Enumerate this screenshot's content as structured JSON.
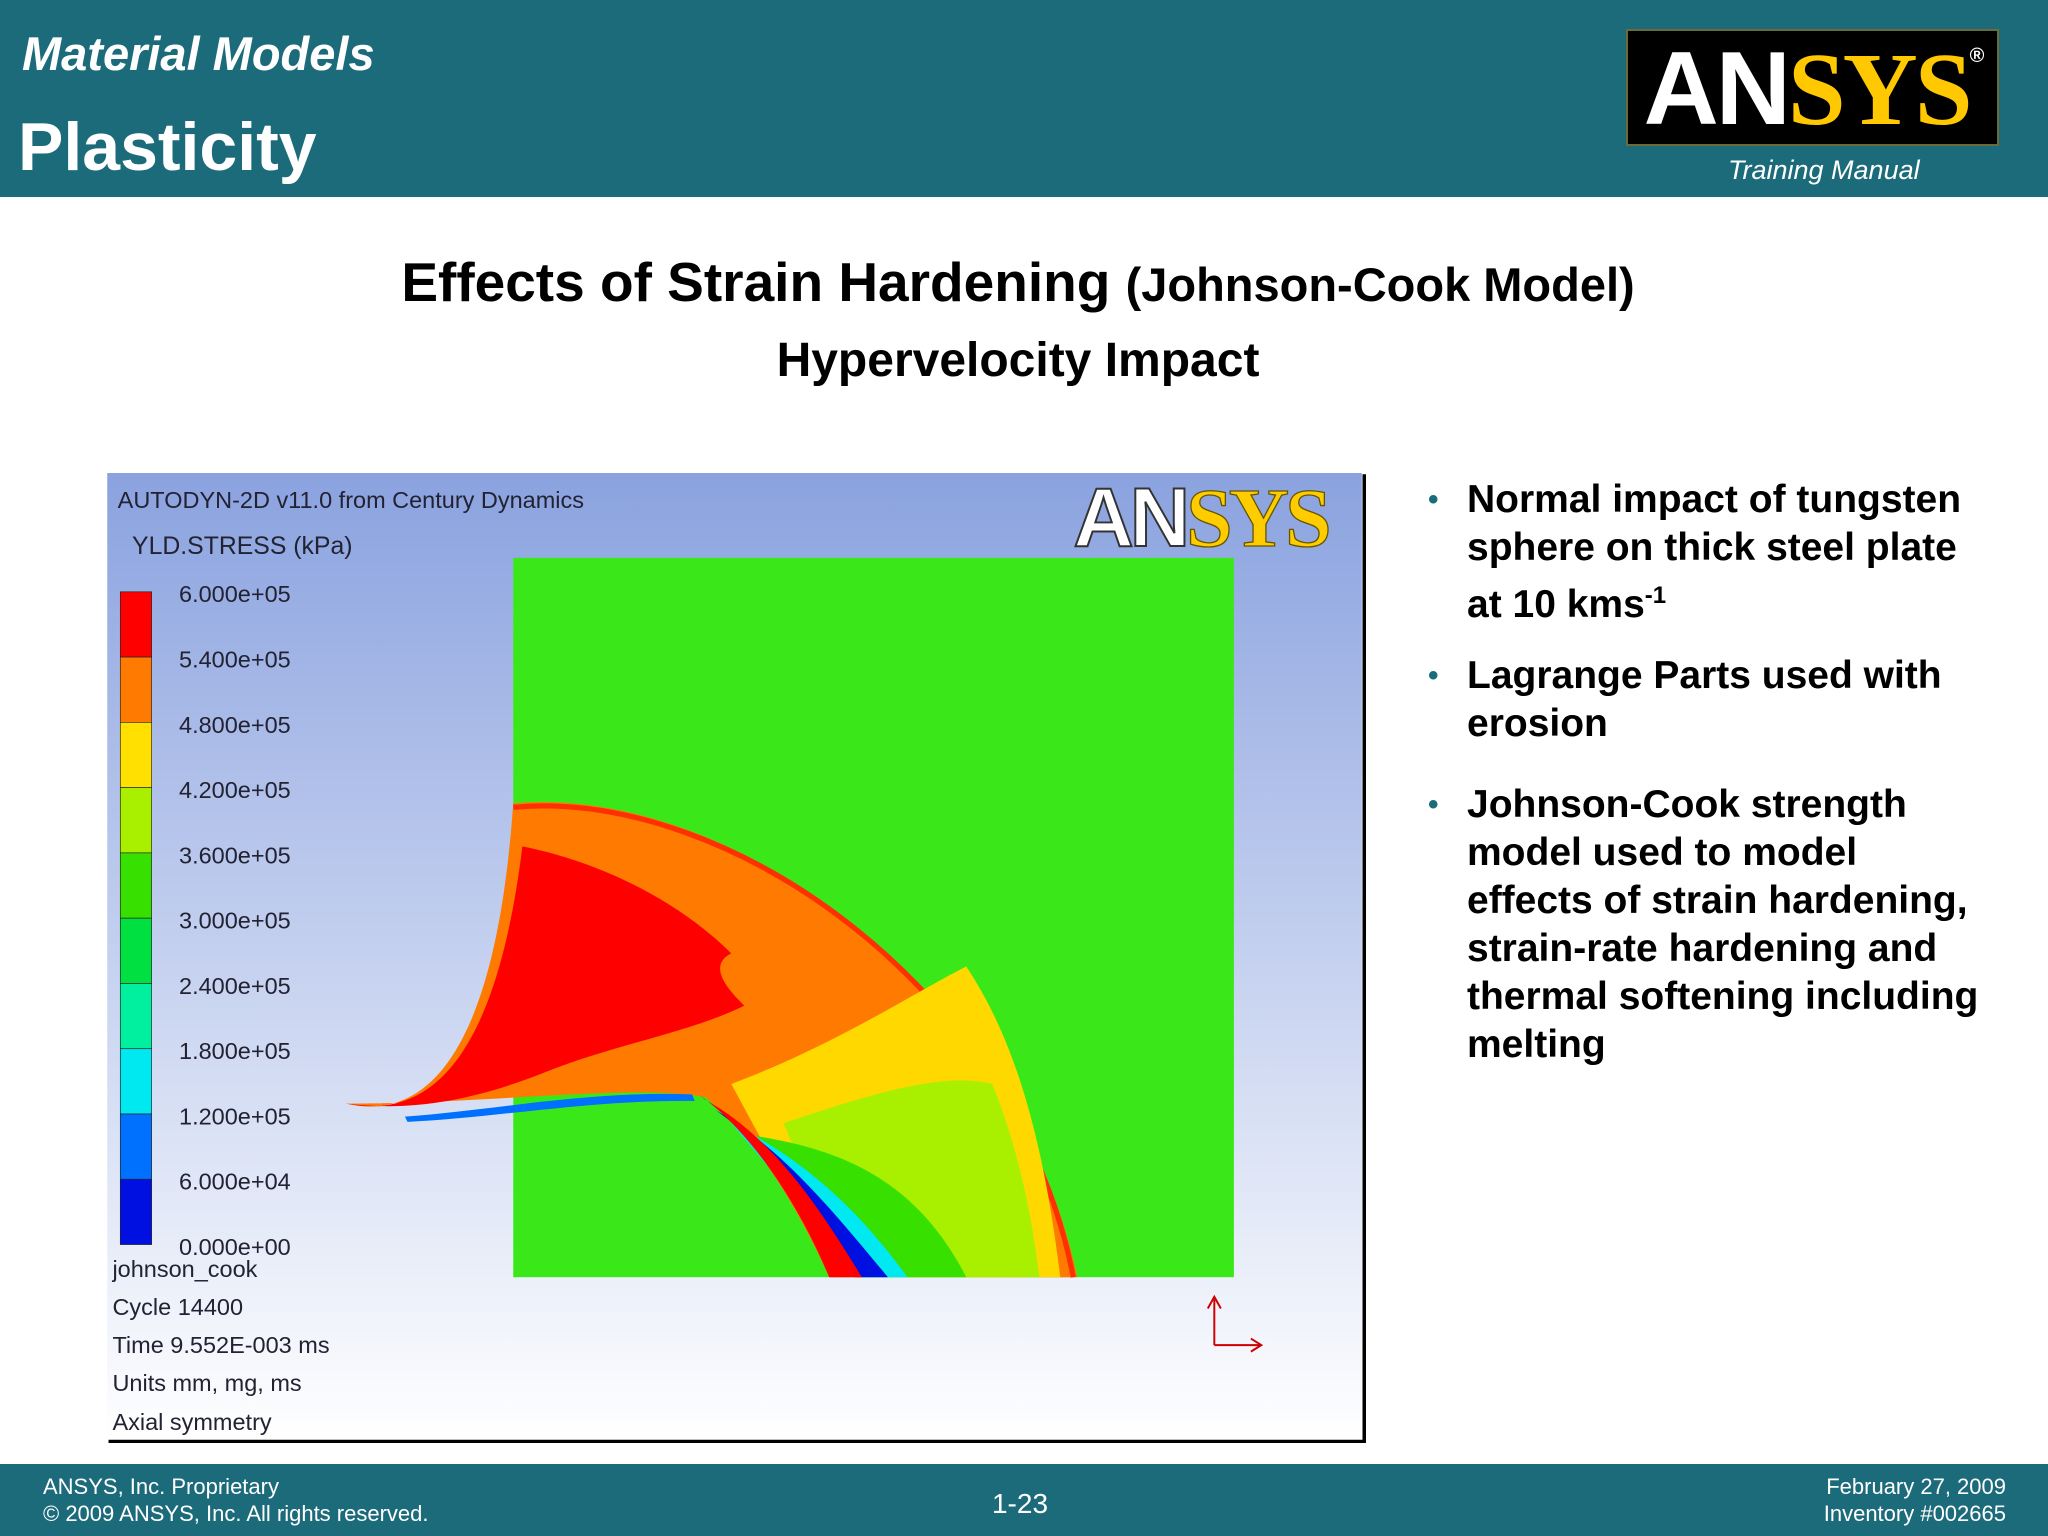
{
  "header": {
    "section": "Material Models",
    "title": "Plasticity",
    "logo": {
      "left": "AN",
      "right": "SYS",
      "mark": "®"
    },
    "logo_caption": "Training Manual"
  },
  "slide": {
    "title": "Effects of Strain Hardening",
    "title_suffix": "(Johnson-Cook Model)",
    "subtitle": "Hypervelocity Impact"
  },
  "figure": {
    "program": "AUTODYN-2D v11.0 from Century Dynamics",
    "logo": {
      "left": "AN",
      "right": "SYS"
    },
    "variable": "YLD.STRESS (kPa)",
    "legend_labels": [
      "6.000e+05",
      "5.400e+05",
      "4.800e+05",
      "4.200e+05",
      "3.600e+05",
      "3.000e+05",
      "2.400e+05",
      "1.800e+05",
      "1.200e+05",
      "6.000e+04",
      "0.000e+00"
    ],
    "legend_colors": [
      "#ff0000",
      "#ff7a00",
      "#ffe000",
      "#a8f000",
      "#38e000",
      "#00e040",
      "#00f0a0",
      "#00e8f0",
      "#0070ff",
      "#0010e0"
    ],
    "info": [
      "johnson_cook",
      "Cycle 14400",
      "Time 9.552E-003 ms",
      "Units mm, mg, ms",
      "Axial symmetry"
    ]
  },
  "bullets": [
    {
      "text": "Normal impact of tungsten sphere on thick steel plate at 10 kms",
      "sup": "-1"
    },
    {
      "text": "Lagrange Parts used with erosion"
    },
    {
      "text": "Johnson-Cook strength model used to model effects of strain hardening, strain-rate hardening and thermal softening including melting"
    }
  ],
  "footer": {
    "left": [
      "ANSYS, Inc. Proprietary",
      "© 2009 ANSYS, Inc.  All rights reserved."
    ],
    "page": "1-23",
    "right": [
      "February 27, 2009",
      "Inventory #002665"
    ]
  }
}
